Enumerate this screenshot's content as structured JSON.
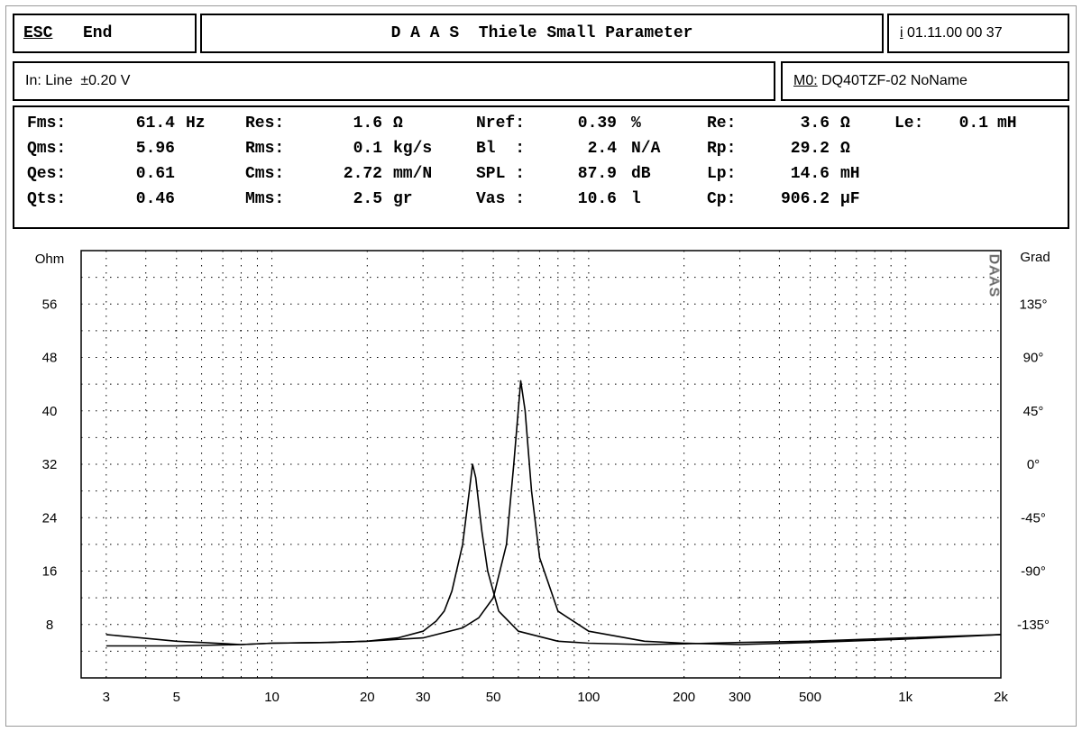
{
  "header": {
    "esc_label": "ESC",
    "end_label": "End",
    "title": "D A A S  Thiele Small Parameter",
    "info_key": "i",
    "datetime": "01.11.00 00 37"
  },
  "subheader": {
    "input_text": "In: Line  ±0.20 V",
    "memory_key": "M0:",
    "memory_name": "DQ40TZF-02 NoName"
  },
  "params": [
    [
      {
        "label": "Fms:",
        "value": "61.4",
        "unit": "Hz"
      },
      {
        "label": "Qms:",
        "value": "5.96",
        "unit": ""
      },
      {
        "label": "Qes:",
        "value": "0.61",
        "unit": ""
      },
      {
        "label": "Qts:",
        "value": "0.46",
        "unit": ""
      }
    ],
    [
      {
        "label": "Res:",
        "value": "1.6",
        "unit": "Ω"
      },
      {
        "label": "Rms:",
        "value": "0.1",
        "unit": "kg/s"
      },
      {
        "label": "Cms:",
        "value": "2.72",
        "unit": "mm/N"
      },
      {
        "label": "Mms:",
        "value": "2.5",
        "unit": "gr"
      }
    ],
    [
      {
        "label": "Nref:",
        "value": "0.39",
        "unit": "%"
      },
      {
        "label": "Bl  :",
        "value": "2.4",
        "unit": "N/A"
      },
      {
        "label": "SPL :",
        "value": "87.9",
        "unit": "dB"
      },
      {
        "label": "Vas :",
        "value": "10.6",
        "unit": "l"
      }
    ],
    [
      {
        "label": "Re:",
        "value": "3.6",
        "unit": "Ω"
      },
      {
        "label": "Rp:",
        "value": "29.2",
        "unit": "Ω"
      },
      {
        "label": "Lp:",
        "value": "14.6",
        "unit": "mH"
      },
      {
        "label": "Cp:",
        "value": "906.2",
        "unit": "µF"
      }
    ],
    [
      {
        "label": "Le:",
        "value": "0.1",
        "unit": "mH"
      }
    ]
  ],
  "chart_data": {
    "type": "line",
    "x_scale": "log",
    "xlim": [
      2.5,
      2000
    ],
    "x_ticks": [
      3,
      5,
      10,
      20,
      30,
      50,
      100,
      200,
      300,
      500,
      1000,
      2000
    ],
    "x_tick_labels": [
      "3",
      "5",
      "10",
      "20",
      "30",
      "50",
      "100",
      "200",
      "300",
      "500",
      "1k",
      "2k"
    ],
    "ylabel_left": "Ohm",
    "ylim_left": [
      0,
      64
    ],
    "y_left_ticks": [
      8,
      16,
      24,
      32,
      40,
      48,
      56
    ],
    "ylabel_right": "Grad",
    "ylim_right": [
      -180,
      180
    ],
    "y_right_ticks": [
      -135,
      -90,
      -45,
      0,
      45,
      90,
      135
    ],
    "y_right_tick_labels": [
      "-135°",
      "-90°",
      "-45°",
      "0°",
      "45°",
      "90°",
      "135°"
    ],
    "grid": true,
    "watermark": "DAAS",
    "series": [
      {
        "x": [
          3,
          5,
          8,
          10,
          15,
          20,
          25,
          30,
          33,
          35,
          37,
          40,
          42,
          43,
          44,
          46,
          48,
          52,
          60,
          80,
          100,
          150,
          200,
          300,
          500,
          1000,
          2000
        ],
        "y": [
          4.8,
          4.8,
          5.0,
          5.2,
          5.3,
          5.5,
          6.0,
          7.0,
          8.5,
          10.0,
          13.0,
          20.0,
          28.0,
          32.0,
          30.0,
          22.0,
          16.0,
          10.0,
          7.0,
          5.5,
          5.2,
          5.0,
          5.1,
          5.3,
          5.5,
          6.0,
          6.5
        ]
      },
      {
        "x": [
          3,
          5,
          8,
          10,
          15,
          20,
          30,
          40,
          45,
          50,
          55,
          58,
          61,
          63,
          66,
          70,
          80,
          100,
          150,
          200,
          300,
          500,
          1000,
          2000
        ],
        "y": [
          6.5,
          5.5,
          5.0,
          5.2,
          5.3,
          5.5,
          6.0,
          7.5,
          9.0,
          12.0,
          20.0,
          32.0,
          44.5,
          40.0,
          28.0,
          18.0,
          10.0,
          7.0,
          5.5,
          5.2,
          5.0,
          5.3,
          5.8,
          6.5
        ]
      }
    ]
  }
}
